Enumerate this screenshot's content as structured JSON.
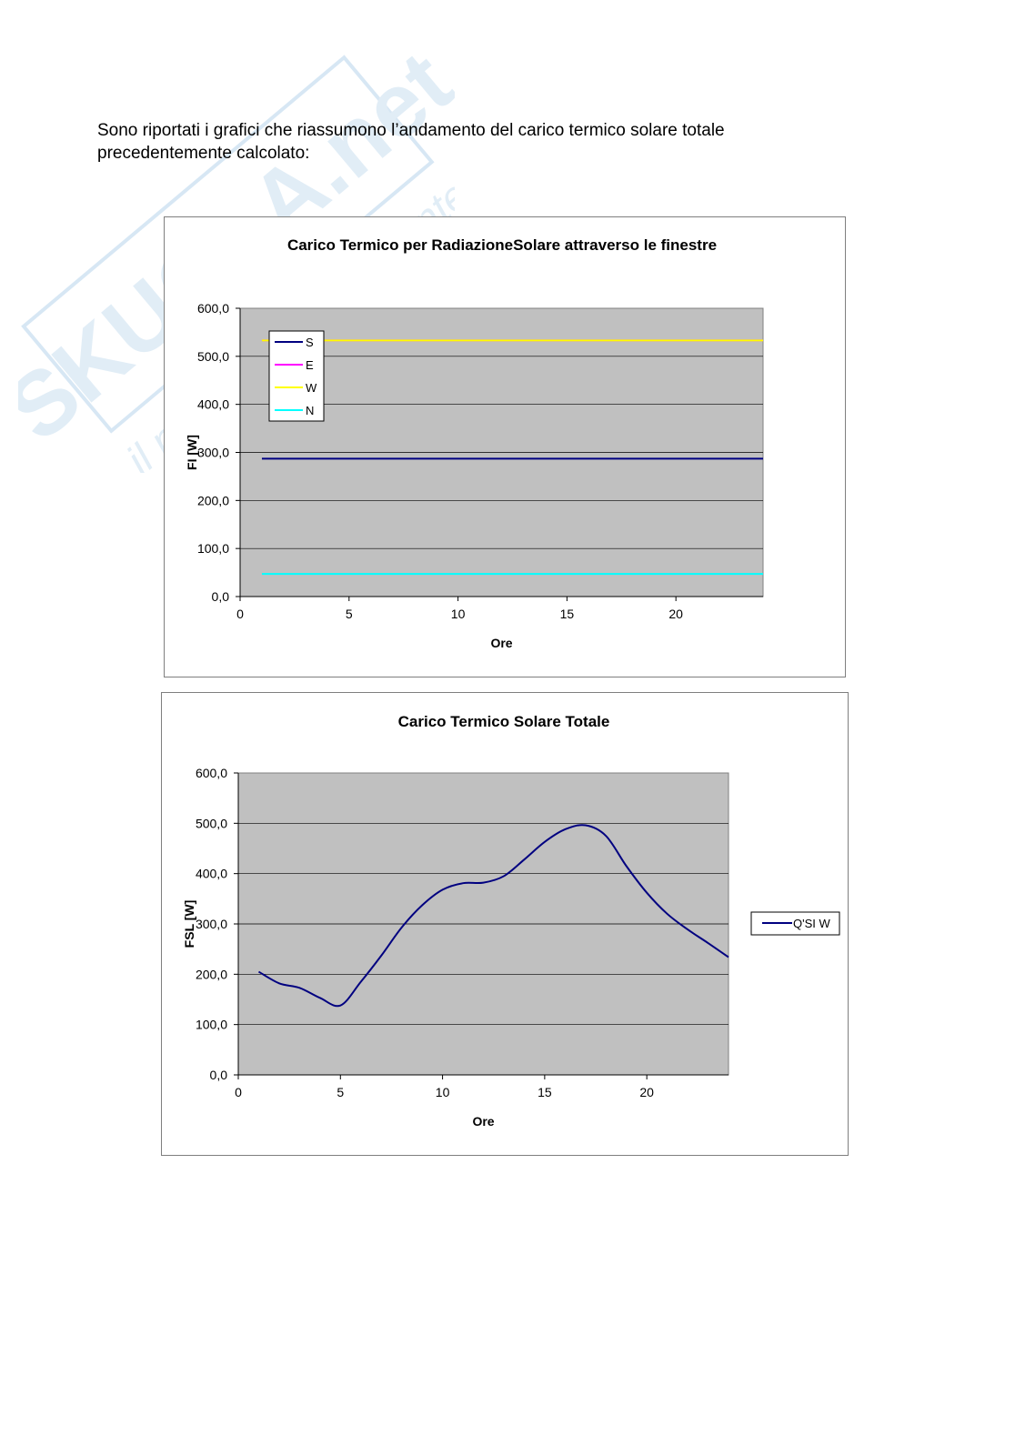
{
  "intro": {
    "line1": "Sono riportati i grafici che riassumono l’andamento del carico termico solare totale",
    "line2": "precedentemente calcolato:"
  },
  "watermark": {
    "brand": "SKUOLA.net",
    "tagline": "il portale dello studente"
  },
  "colors": {
    "plot_bg": "#c0c0c0",
    "S": "#000080",
    "E": "#ff00ff",
    "W": "#ffff00",
    "N": "#00ffff",
    "total": "#000080"
  },
  "chart_data": [
    {
      "type": "line",
      "title": "Carico Termico per RadiazioneSolare attraverso le finestre",
      "xlabel": "Ore",
      "ylabel": "FI [W]",
      "xlim": [
        0,
        24
      ],
      "ylim": [
        0,
        600
      ],
      "xticks": [
        "0",
        "5",
        "10",
        "15",
        "20"
      ],
      "yticks": [
        "0,0",
        "100,0",
        "200,0",
        "300,0",
        "400,0",
        "500,0",
        "600,0"
      ],
      "grid": true,
      "legend": "top-left",
      "x": [
        1,
        24
      ],
      "series": [
        {
          "name": "S",
          "values": [
            287,
            287
          ]
        },
        {
          "name": "E",
          "values": [
            533,
            533
          ]
        },
        {
          "name": "W",
          "values": [
            533,
            533
          ]
        },
        {
          "name": "N",
          "values": [
            47,
            47
          ]
        }
      ]
    },
    {
      "type": "line",
      "title": "Carico Termico Solare Totale",
      "xlabel": "Ore",
      "ylabel": "FSL [W]",
      "xlim": [
        0,
        24
      ],
      "ylim": [
        0,
        600
      ],
      "xticks": [
        "0",
        "5",
        "10",
        "15",
        "20"
      ],
      "yticks": [
        "0,0",
        "100,0",
        "200,0",
        "300,0",
        "400,0",
        "500,0",
        "600,0"
      ],
      "grid": true,
      "legend": "right",
      "x": [
        1,
        2,
        3,
        4,
        5,
        6,
        7,
        8,
        9,
        10,
        11,
        12,
        13,
        14,
        15,
        16,
        17,
        18,
        19,
        20,
        21,
        22,
        23,
        24
      ],
      "series": [
        {
          "name": "Q'SI W",
          "values": [
            205,
            182,
            173,
            153,
            138,
            185,
            237,
            293,
            337,
            368,
            381,
            382,
            395,
            428,
            463,
            488,
            496,
            475,
            415,
            362,
            320,
            289,
            262,
            234
          ]
        }
      ]
    }
  ]
}
